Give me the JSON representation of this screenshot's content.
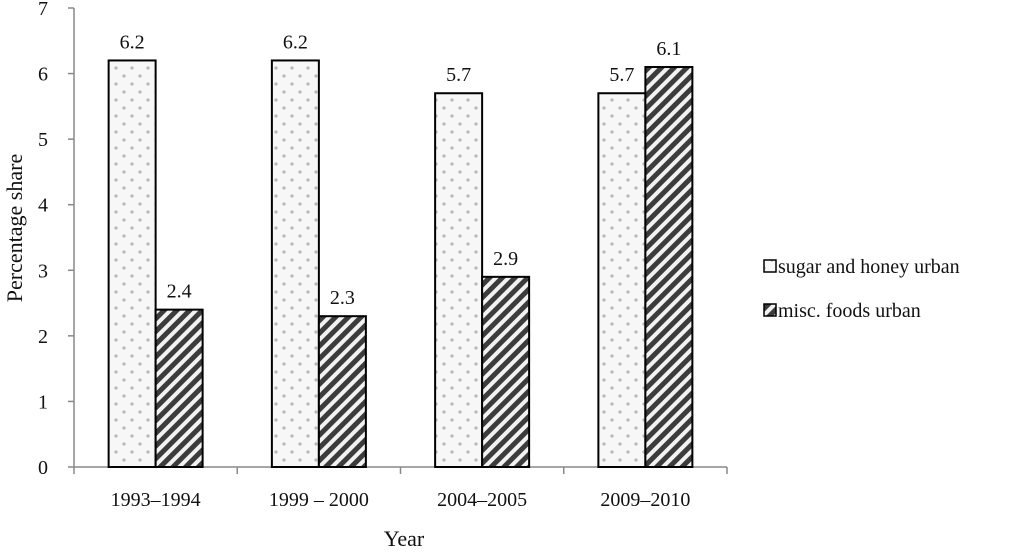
{
  "chart_data": {
    "type": "bar",
    "categories": [
      "1993–1994",
      "1999 – 2000",
      "2004–2005",
      "2009–2010"
    ],
    "series": [
      {
        "name": "sugar and honey urban",
        "values": [
          6.2,
          6.2,
          5.7,
          5.7
        ],
        "pattern": "dots"
      },
      {
        "name": "misc. foods urban",
        "values": [
          2.4,
          2.3,
          2.9,
          6.1
        ],
        "pattern": "diagonal-hatch"
      }
    ],
    "data_labels": [
      [
        "6.2",
        "6.2",
        "5.7",
        "5.7"
      ],
      [
        "2.4",
        "2.3",
        "2.9",
        "6.1"
      ]
    ],
    "xlabel": "Year",
    "ylabel": "Percentage share",
    "ylim": [
      0,
      7
    ],
    "yticks": [
      "0",
      "1",
      "2",
      "3",
      "4",
      "5",
      "6",
      "7"
    ],
    "grid": false,
    "legend_position": "right",
    "colors": {
      "bar_stroke": "#000000",
      "dot_fill": "#b8b8b8",
      "hatch_dark": "#3c3c3c",
      "hatch_light": "#f2f2f2"
    }
  }
}
